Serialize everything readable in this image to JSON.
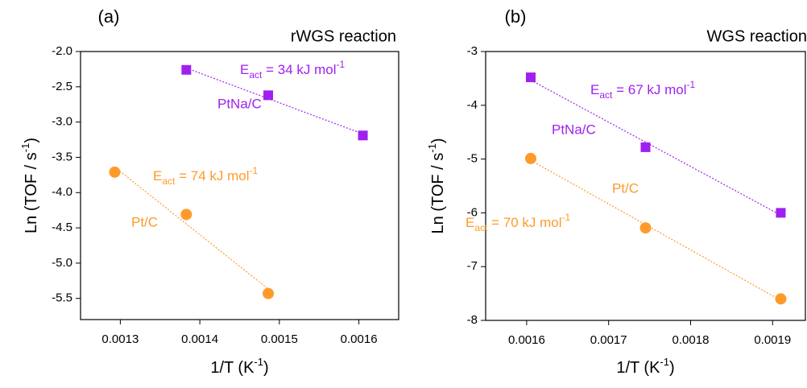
{
  "chart_data": [
    {
      "type": "scatter",
      "panel_label": "(a)",
      "title": "rWGS reaction",
      "xlabel": [
        {
          "text": "1/T (K"
        },
        {
          "sup": "-1"
        },
        {
          "text": ")"
        }
      ],
      "ylabel": [
        {
          "text": "Ln (TOF / s"
        },
        {
          "sup": "-1"
        },
        {
          "text": ")"
        }
      ],
      "xlim": [
        0.00125,
        0.00165
      ],
      "xticks": [
        0.0013,
        0.0014,
        0.0015,
        0.0016
      ],
      "ylim": [
        -5.8,
        -2.0
      ],
      "yticks": [
        {
          "value": -2,
          "label": "-2.0"
        },
        -2.5,
        {
          "value": -3,
          "label": "-3.0"
        },
        -3.5,
        {
          "value": -4,
          "label": "-4.0"
        },
        -4.5,
        {
          "value": -5,
          "label": "-5.0"
        },
        -5.5
      ],
      "series": [
        {
          "name": "PtNa/C",
          "color": "#a020f0",
          "marker": "square",
          "x": [
            0.001383,
            0.001486,
            0.001605
          ],
          "values": [
            -2.26,
            -2.62,
            -3.19
          ]
        },
        {
          "name": "Pt/C",
          "color": "#ff9a2a",
          "marker": "circle",
          "x": [
            0.001293,
            0.001383,
            0.001486
          ],
          "values": [
            -3.71,
            -4.31,
            -5.43
          ]
        }
      ],
      "annotations": [
        {
          "series": 0,
          "text": "E",
          "sub": "act",
          "rest": " = 34 kJ mol",
          "sup": "-1"
        },
        {
          "series": 1,
          "text": "E",
          "sub": "act",
          "rest": " = 74 kJ mol",
          "sup": "-1"
        }
      ]
    },
    {
      "type": "scatter",
      "panel_label": "(b)",
      "title": "WGS reaction",
      "xlabel": [
        {
          "text": "1/T (K"
        },
        {
          "sup": "-1"
        },
        {
          "text": ")"
        }
      ],
      "ylabel": [
        {
          "text": "Ln (TOF / s"
        },
        {
          "sup": "-1"
        },
        {
          "text": ")"
        }
      ],
      "xlim": [
        0.00155,
        0.00194
      ],
      "xticks": [
        0.0016,
        0.0017,
        0.0018,
        0.0019
      ],
      "ylim": [
        -8,
        -3
      ],
      "yticks": [
        -3,
        -4,
        -5,
        -6,
        -7,
        -8
      ],
      "series": [
        {
          "name": "PtNa/C",
          "color": "#a020f0",
          "marker": "square",
          "x": [
            0.001605,
            0.001745,
            0.00191
          ],
          "values": [
            -3.48,
            -4.78,
            -6.0
          ]
        },
        {
          "name": "Pt/C",
          "color": "#ff9a2a",
          "marker": "circle",
          "x": [
            0.001605,
            0.001745,
            0.00191
          ],
          "values": [
            -4.99,
            -6.28,
            -7.6
          ]
        }
      ],
      "annotations": [
        {
          "series": 0,
          "text": "E",
          "sub": "act",
          "rest": " = 67 kJ mol",
          "sup": "-1"
        },
        {
          "series": 1,
          "text": "E",
          "sub": "act",
          "rest": " = 70 kJ mol",
          "sup": "-1"
        }
      ]
    }
  ]
}
